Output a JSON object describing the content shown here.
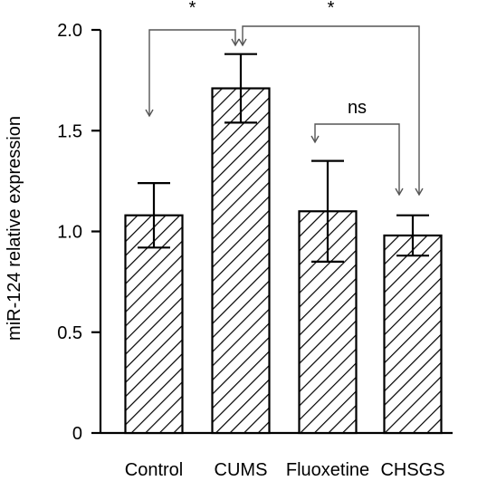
{
  "chart_data": {
    "type": "bar",
    "categories": [
      "Control",
      "CUMS",
      "Fluoxetine",
      "CHSGS"
    ],
    "values": [
      1.08,
      1.71,
      1.1,
      0.98
    ],
    "error": [
      0.16,
      0.17,
      0.25,
      0.1
    ],
    "ylabel": "miR-124 relative expression",
    "ylim": [
      0,
      2.0
    ],
    "yticks": [
      0,
      0.5,
      1.0,
      1.5,
      2.0
    ],
    "ytick_labels": [
      "0",
      "0.5",
      "1.0",
      "1.5",
      "2.0"
    ],
    "bar_pattern": "diagonal-hatch",
    "grid": false,
    "comparisons": [
      {
        "from": "Control",
        "to": "CUMS",
        "label": "*"
      },
      {
        "from": "CUMS",
        "to": "CHSGS",
        "label": "*"
      },
      {
        "from": "Fluoxetine",
        "to": "CHSGS",
        "label": "ns"
      }
    ]
  }
}
